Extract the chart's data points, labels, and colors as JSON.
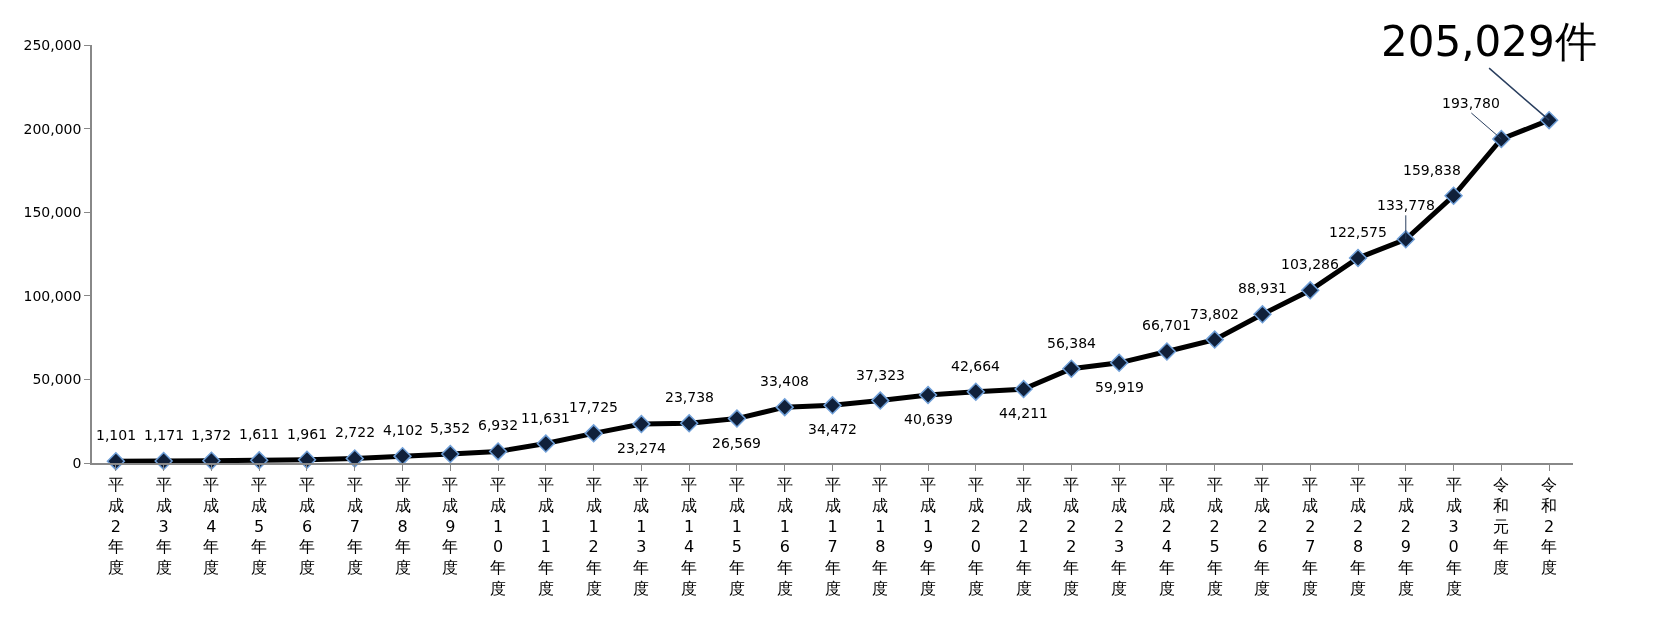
{
  "chart_data": {
    "type": "line",
    "categories": [
      "平成2年度",
      "平成3年度",
      "平成4年度",
      "平成5年度",
      "平成6年度",
      "平成7年度",
      "平成8年度",
      "平成9年度",
      "平成10年度",
      "平成11年度",
      "平成12年度",
      "平成13年度",
      "平成14年度",
      "平成15年度",
      "平成16年度",
      "平成17年度",
      "平成18年度",
      "平成19年度",
      "平成20年度",
      "平成21年度",
      "平成22年度",
      "平成23年度",
      "平成24年度",
      "平成25年度",
      "平成26年度",
      "平成27年度",
      "平成28年度",
      "平成29年度",
      "平成30年度",
      "令和元年度",
      "令和2年度"
    ],
    "series": [
      {
        "color": "#000000",
        "values": [
          1101,
          1171,
          1372,
          1611,
          1961,
          2722,
          4102,
          5352,
          6932,
          11631,
          17725,
          23274,
          23738,
          26569,
          33408,
          34472,
          37323,
          40639,
          42664,
          44211,
          56384,
          59919,
          66701,
          73802,
          88931,
          103286,
          122575,
          133778,
          159838,
          193780,
          205029
        ],
        "value_labels": [
          "1,101",
          "1,171",
          "1,372",
          "1,611",
          "1,961",
          "2,722",
          "4,102",
          "5,352",
          "6,932",
          "11,631",
          "17,725",
          "23,274",
          "23,738",
          "26,569",
          "33,408",
          "34,472",
          "37,323",
          "40,639",
          "42,664",
          "44,211",
          "56,384",
          "59,919",
          "66,701",
          "73,802",
          "88,931",
          "103,286",
          "122,575",
          "133,778",
          "159,838",
          "193,780",
          "205,029件"
        ]
      }
    ],
    "ylim": [
      0,
      250000
    ],
    "yticks": [
      0,
      {
        "value": 50000,
        "label": "50,000"
      },
      {
        "value": 100000,
        "label": "100,000"
      },
      {
        "value": 150000,
        "label": "150,000"
      },
      {
        "value": 200000,
        "label": "200,000"
      },
      {
        "value": 250000,
        "label": "250,000"
      }
    ],
    "legend": false,
    "marker": "diamond",
    "line_style": "solid"
  }
}
